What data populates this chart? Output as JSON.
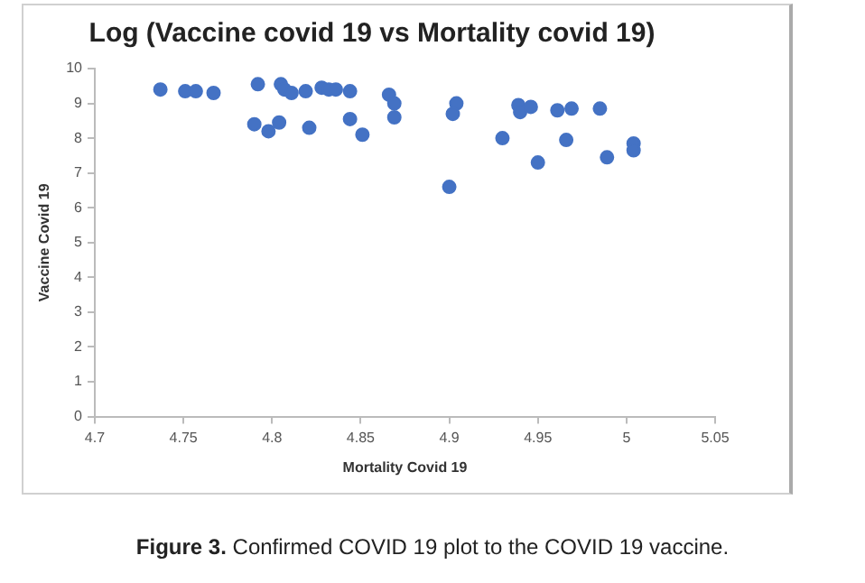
{
  "chart_data": {
    "type": "scatter",
    "title": "Log (Vaccine covid 19 vs Mortality covid 19)",
    "xlabel": "Mortality Covid 19",
    "ylabel": "Vaccine Covid 19",
    "annotations": [
      "Figure 3. Confirmed COVID 19 plot to the COVID 19 vaccine."
    ],
    "x": [
      4.737,
      4.751,
      4.757,
      4.767,
      4.792,
      4.79,
      4.798,
      4.804,
      4.805,
      4.807,
      4.811,
      4.819,
      4.821,
      4.828,
      4.832,
      4.836,
      4.844,
      4.844,
      4.851,
      4.866,
      4.869,
      4.869,
      4.904,
      4.902,
      4.9,
      4.93,
      4.939,
      4.94,
      4.946,
      4.95,
      4.961,
      4.966,
      4.969,
      4.985,
      4.989,
      5.004,
      5.004
    ],
    "series": [
      {
        "color": "#4472c4",
        "values": [
          9.4,
          9.35,
          9.35,
          9.3,
          9.55,
          8.4,
          8.2,
          8.45,
          9.55,
          9.4,
          9.3,
          9.35,
          8.3,
          9.45,
          9.4,
          9.4,
          9.35,
          8.55,
          8.1,
          9.25,
          9.0,
          8.6,
          9.0,
          8.7,
          6.6,
          8.0,
          8.95,
          8.75,
          8.9,
          7.3,
          8.8,
          7.95,
          8.85,
          8.85,
          7.45,
          7.85,
          7.65
        ]
      }
    ],
    "xlim": [
      4.7,
      5.05
    ],
    "xticks": [
      4.7,
      4.75,
      4.8,
      4.85,
      4.9,
      4.95,
      5,
      5.05
    ],
    "ylim": [
      0,
      10
    ],
    "yticks": [
      0,
      1,
      2,
      3,
      4,
      5,
      6,
      7,
      8,
      9,
      10
    ],
    "grid": false,
    "legend": false,
    "marker": "circle"
  }
}
